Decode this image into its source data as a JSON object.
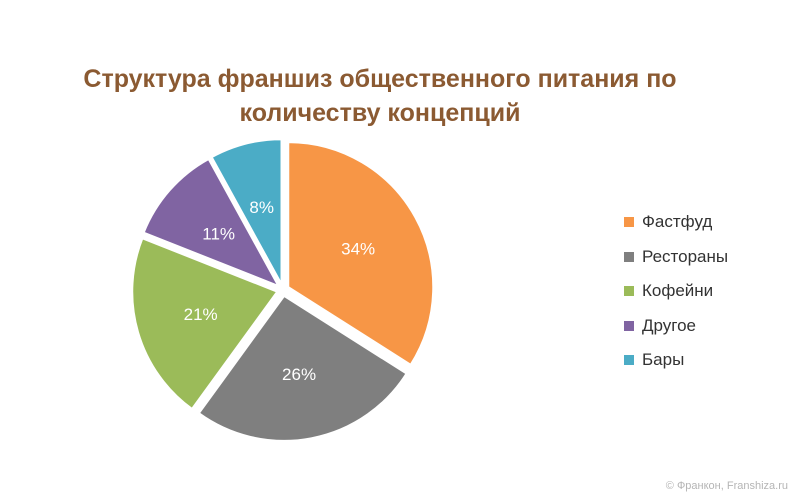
{
  "chart_data": {
    "type": "pie",
    "title_lines": [
      "Структура франшиз общественного питания по",
      "количеству концепций"
    ],
    "categories": [
      "Фастфуд",
      "Рестораны",
      "Кофейни",
      "Другое",
      "Бары"
    ],
    "values": [
      34,
      26,
      21,
      11,
      8
    ],
    "data_labels": [
      "34%",
      "26%",
      "21%",
      "11%",
      "8%"
    ],
    "colors": [
      "#F79646",
      "#7F7F7F",
      "#9BBB59",
      "#8064A2",
      "#4BACC6"
    ],
    "legend_position": "right"
  },
  "watermark": "© Франкон, Franshiza.ru"
}
